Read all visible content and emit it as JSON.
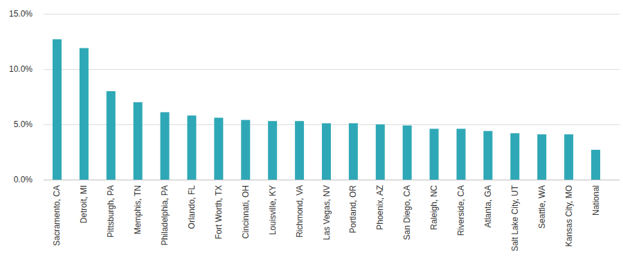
{
  "chart_data": {
    "type": "bar",
    "categories": [
      "Sacramento, CA",
      "Detroit, MI",
      "Pittsburgh, PA",
      "Memphis, TN",
      "Philadelphia, PA",
      "Orlando, FL",
      "Fort Worth, TX",
      "Cincinnati, OH",
      "Louisville, KY",
      "Richmond, VA",
      "Las Vegas, NV",
      "Portland, OR",
      "Phoenix, AZ",
      "San Diego, CA",
      "Raleigh, NC",
      "Riverside, CA",
      "Atlanta, GA",
      "Salt Lake City, UT",
      "Seattle, WA",
      "Kansas City, MO",
      "National"
    ],
    "values": [
      12.7,
      11.9,
      8.0,
      7.0,
      6.1,
      5.8,
      5.6,
      5.4,
      5.3,
      5.3,
      5.1,
      5.1,
      5.0,
      4.9,
      4.6,
      4.6,
      4.4,
      4.2,
      4.1,
      4.1,
      2.7
    ],
    "color": "#2ea8b6",
    "ylim": [
      0,
      15
    ],
    "yticks": [
      {
        "value": 0,
        "label": "0.0%"
      },
      {
        "value": 5,
        "label": "5.0%"
      },
      {
        "value": 10,
        "label": "10.0%"
      },
      {
        "value": 15,
        "label": "15.0%"
      }
    ],
    "grid": true
  }
}
